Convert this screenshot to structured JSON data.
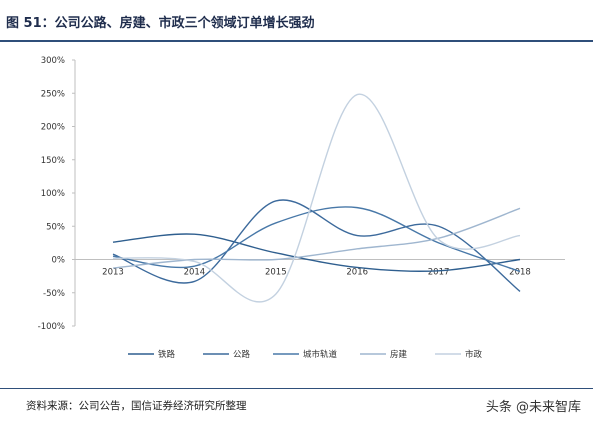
{
  "header": {
    "title": "图 51：公司公路、房建、市政三个领域订单增长强劲"
  },
  "footer": {
    "source": "资料来源：公司公告，国信证券经济研究所整理",
    "watermark": "头条 @未来智库"
  },
  "chart_data": {
    "type": "line",
    "title": "",
    "xlabel": "",
    "ylabel": "",
    "categories": [
      "2013",
      "2014",
      "2015",
      "2016",
      "2017",
      "2018"
    ],
    "ylim": [
      -100,
      300
    ],
    "yticks": [
      -100,
      -50,
      0,
      50,
      100,
      150,
      200,
      250,
      300
    ],
    "ytick_labels": [
      "-100%",
      "-50%",
      "0%",
      "50%",
      "100%",
      "150%",
      "200%",
      "250%",
      "300%"
    ],
    "grid": false,
    "legend_position": "bottom",
    "smooth": true,
    "series": [
      {
        "name": "铁路",
        "color": "#2f5f8f",
        "values": [
          26,
          38,
          10,
          -12,
          -17,
          0
        ]
      },
      {
        "name": "公路",
        "color": "#3c6a9c",
        "values": [
          8,
          -33,
          88,
          36,
          50,
          -48
        ]
      },
      {
        "name": "城市轨道",
        "color": "#4878a8",
        "values": [
          5,
          -10,
          55,
          78,
          25,
          -18
        ]
      },
      {
        "name": "房建",
        "color": "#9fb6cf",
        "values": [
          -13,
          0,
          0,
          16,
          32,
          77
        ]
      },
      {
        "name": "市政",
        "color": "#c3d1e0",
        "values": [
          2,
          -3,
          -52,
          248,
          30,
          36
        ]
      }
    ]
  }
}
